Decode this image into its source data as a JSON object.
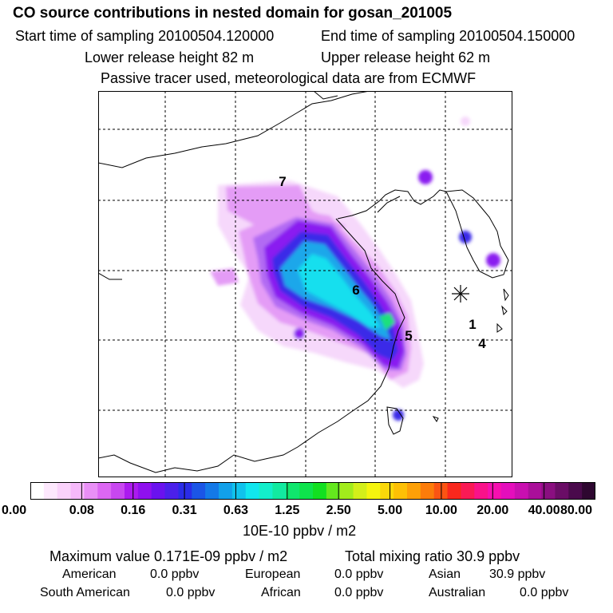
{
  "header": {
    "title": "CO  source contributions in nested domain for gosan_201005",
    "start_label": "Start time of sampling 20100504.120000",
    "end_label": "End time of sampling 20100504.150000",
    "lower_label": "Lower release height   82 m",
    "upper_label": "Upper release height   62 m",
    "note": "Passive tracer used, meteorological data are from ECMWF"
  },
  "map": {
    "markers": [
      {
        "label": "7"
      },
      {
        "label": "6"
      },
      {
        "label": "5"
      },
      {
        "label": "1"
      },
      {
        "label": "4"
      }
    ],
    "colors": {
      "very_low": "#f6d8fb",
      "low": "#e49cf6",
      "mid_low": "#b26af3",
      "purple": "#8a1cf0",
      "blue": "#3b2ce8",
      "cyan_blue": "#1fa7ea",
      "cyan": "#14dfee",
      "green": "#1ce07c"
    }
  },
  "colorbar": {
    "ticks": [
      "0.00",
      "0.08",
      "0.16",
      "0.31",
      "0.63",
      "1.25",
      "2.50",
      "5.00",
      "10.00",
      "20.00",
      "40.00",
      "80.00"
    ],
    "colors": [
      "#ffffff",
      "#fde8fd",
      "#fad2fb",
      "#f6b9fa",
      "#e98ff6",
      "#dc67f3",
      "#c847f0",
      "#ac1af0",
      "#8f10ee",
      "#6a12ee",
      "#4b20ea",
      "#2a2ce8",
      "#1b55e6",
      "#1479e8",
      "#12a0ea",
      "#10c2ec",
      "#11e6ee",
      "#13eecb",
      "#12eaa0",
      "#10e66d",
      "#0ee34c",
      "#12e020",
      "#64e81e",
      "#a2ec1c",
      "#d3ef1a",
      "#f5f50e",
      "#fbd80a",
      "#fdc005",
      "#fda007",
      "#fc7c0a",
      "#fb5413",
      "#f9281d",
      "#fa1a55",
      "#f9128a",
      "#f60fb0",
      "#e50ebc",
      "#c90fb0",
      "#aa0f9a",
      "#8a0f80",
      "#6a0d66",
      "#4a0a4c",
      "#2e0730"
    ],
    "unit": "10E-10 ppbv / m2"
  },
  "summary": {
    "max_label": "Maximum value  0.171E-09 ppbv / m2",
    "total_label": "Total mixing ratio      30.9 ppbv",
    "regions": [
      {
        "name": "American",
        "value": "0.0 ppbv"
      },
      {
        "name": "European",
        "value": "0.0 ppbv"
      },
      {
        "name": "Asian",
        "value": "30.9 ppbv"
      },
      {
        "name": "South American",
        "value": "0.0 ppbv"
      },
      {
        "name": "African",
        "value": "0.0 ppbv"
      },
      {
        "name": "Australian",
        "value": "0.0 ppbv"
      }
    ]
  }
}
